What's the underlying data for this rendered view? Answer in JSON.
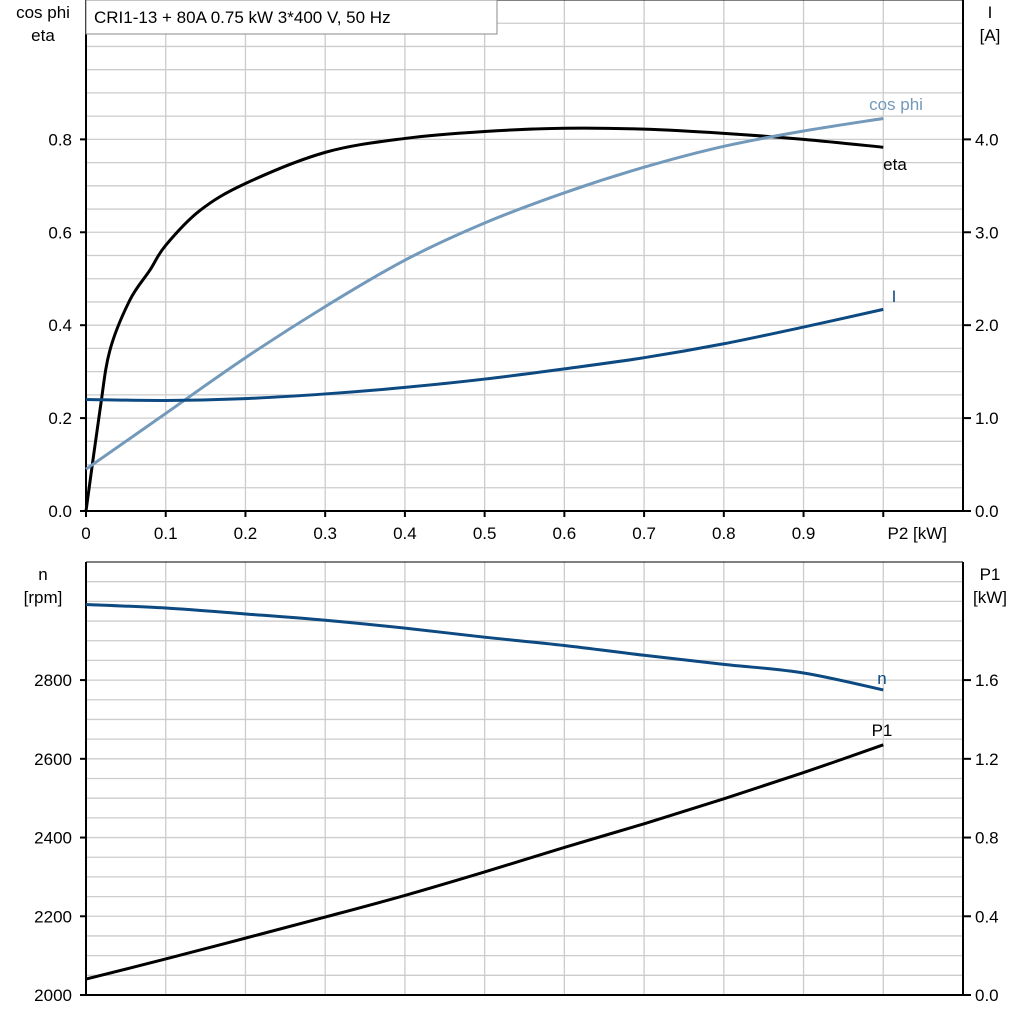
{
  "title": "CRI1-13 + 80A   0.75 kW   3*400 V, 50 Hz",
  "colors": {
    "eta": "#000000",
    "cos_phi": "#7399bb",
    "I": "#0d4a82",
    "n": "#0d4a82",
    "P1": "#000000",
    "grid": "#cccccc"
  },
  "chart_data": [
    {
      "type": "line",
      "xlabel": "P2 [kW]",
      "ylabel_left": [
        "cos phi",
        "eta"
      ],
      "ylabel_right": [
        "I",
        "[A]"
      ],
      "xlim": [
        0,
        1.1
      ],
      "ylim_left": [
        0,
        1.1
      ],
      "ylim_right": [
        0,
        5.5
      ],
      "x_ticks": [
        "0",
        "0.1",
        "0.2",
        "0.3",
        "0.4",
        "0.5",
        "0.6",
        "0.7",
        "0.8",
        "0.9"
      ],
      "y_ticks_left": [
        "0.0",
        "0.2",
        "0.4",
        "0.6",
        "0.8"
      ],
      "y_ticks_right": [
        "0.0",
        "1.0",
        "2.0",
        "3.0",
        "4.0"
      ],
      "grid": true,
      "series": [
        {
          "name": "eta",
          "axis": "left",
          "x": [
            0,
            0.0175,
            0.03,
            0.055,
            0.08,
            0.1,
            0.143,
            0.2,
            0.3,
            0.4,
            0.5,
            0.6,
            0.7,
            0.8,
            0.9,
            1.0
          ],
          "y": [
            0,
            0.217,
            0.346,
            0.454,
            0.518,
            0.572,
            0.647,
            0.705,
            0.772,
            0.802,
            0.817,
            0.824,
            0.822,
            0.813,
            0.8,
            0.783
          ]
        },
        {
          "name": "cos phi",
          "axis": "left",
          "x": [
            0,
            0.1,
            0.2,
            0.3,
            0.4,
            0.5,
            0.6,
            0.7,
            0.8,
            0.9,
            1.0
          ],
          "y": [
            0.09,
            0.21,
            0.33,
            0.44,
            0.54,
            0.62,
            0.685,
            0.74,
            0.785,
            0.818,
            0.845
          ]
        },
        {
          "name": "I",
          "axis": "right",
          "x": [
            0,
            0.1,
            0.2,
            0.3,
            0.4,
            0.5,
            0.6,
            0.7,
            0.8,
            0.9,
            1.0
          ],
          "y": [
            1.2,
            1.19,
            1.21,
            1.26,
            1.33,
            1.42,
            1.53,
            1.65,
            1.8,
            1.98,
            2.17
          ]
        }
      ]
    },
    {
      "type": "line",
      "ylabel_left": [
        "n",
        "[rpm]"
      ],
      "ylabel_right": [
        "P1",
        "[kW]"
      ],
      "xlim": [
        0,
        1.1
      ],
      "ylim_left": [
        2000,
        3100
      ],
      "ylim_right": [
        0,
        2.2
      ],
      "y_ticks_left": [
        "2000",
        "2200",
        "2400",
        "2600",
        "2800"
      ],
      "y_ticks_right": [
        "0.0",
        "0.4",
        "0.8",
        "1.2",
        "1.6"
      ],
      "grid": true,
      "series": [
        {
          "name": "n",
          "axis": "left",
          "x": [
            0,
            0.1,
            0.2,
            0.3,
            0.4,
            0.5,
            0.6,
            0.7,
            0.8,
            0.9,
            1.0
          ],
          "y": [
            2992,
            2983,
            2968,
            2952,
            2932,
            2909,
            2888,
            2863,
            2840,
            2818,
            2775
          ]
        },
        {
          "name": "P1",
          "axis": "right",
          "x": [
            0,
            0.1,
            0.2,
            0.3,
            0.4,
            0.5,
            0.6,
            0.7,
            0.8,
            0.9,
            1.0
          ],
          "y": [
            0.081,
            0.183,
            0.289,
            0.396,
            0.506,
            0.625,
            0.75,
            0.87,
            0.997,
            1.13,
            1.271
          ]
        }
      ]
    }
  ]
}
